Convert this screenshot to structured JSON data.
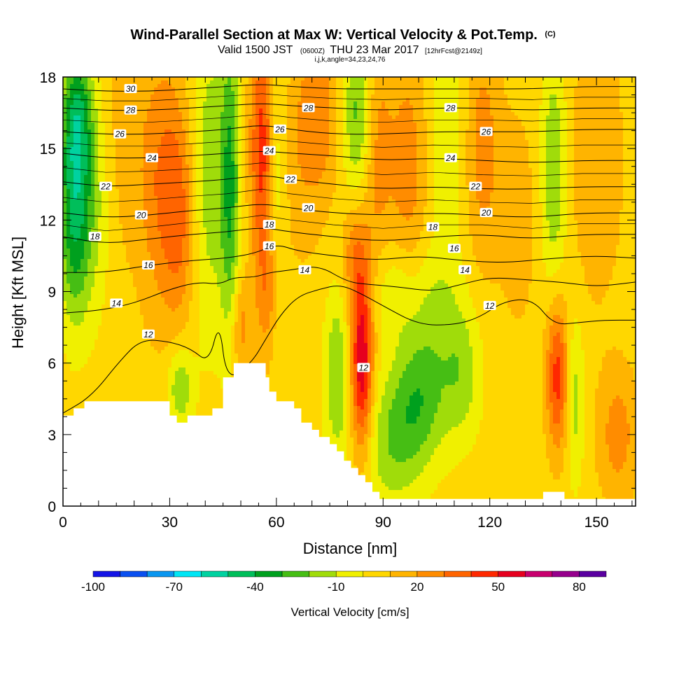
{
  "chart_data": {
    "type": "heatmap",
    "title": "Wind-Parallel Section at Max W: Vertical Velocity & Pot.Temp.",
    "title_mark": "(C)",
    "subtitle_valid": "Valid 1500 JST",
    "subtitle_utc": "(0600Z)",
    "subtitle_date": "THU 23 Mar 2017",
    "subtitle_fcst": "[12hrFcst@2149z]",
    "subtitle_index": "i,j,k,angle=34,23,24,76",
    "xlabel": "Distance [nm]",
    "ylabel": "Height [Kft MSL]",
    "xlim": [
      0,
      161
    ],
    "ylim": [
      0,
      18
    ],
    "x_ticks": [
      "0",
      "30",
      "60",
      "90",
      "120",
      "150"
    ],
    "y_ticks": [
      "0",
      "3",
      "6",
      "9",
      "12",
      "15",
      "18"
    ],
    "colorbar": {
      "title": "Vertical Velocity [cm/s]",
      "labels": [
        "-100",
        "-70",
        "-40",
        "-10",
        "20",
        "50",
        "80"
      ],
      "label_values": [
        -100,
        -70,
        -40,
        -10,
        20,
        50,
        80
      ],
      "min": -100,
      "max": 90,
      "step": 10,
      "colors": [
        "#1414e6",
        "#0a50f0",
        "#0a96f0",
        "#00e6f5",
        "#00d2a0",
        "#00be5a",
        "#00a01e",
        "#46be14",
        "#a0dc0a",
        "#f0f000",
        "#ffd700",
        "#ffb400",
        "#ff8c00",
        "#ff6400",
        "#ff2800",
        "#e6001e",
        "#c8006e",
        "#96008c",
        "#5a00a0"
      ]
    },
    "terrain_profile": {
      "x": [
        0,
        3,
        3,
        6,
        6,
        9,
        9,
        30,
        30,
        32,
        32,
        35,
        35,
        42,
        42,
        45,
        45,
        45,
        48,
        48,
        51,
        51,
        57,
        57,
        58,
        58,
        60,
        60,
        65,
        65,
        67,
        67,
        70,
        70,
        72,
        72,
        75,
        75,
        77,
        77,
        79,
        79,
        81,
        81,
        83,
        83,
        85,
        85,
        87,
        87,
        89,
        89,
        91,
        91,
        94,
        94,
        135,
        135,
        141,
        141,
        161
      ],
      "y": [
        3.8,
        3.8,
        4.1,
        4.1,
        4.4,
        4.4,
        4.4,
        4.4,
        3.8,
        3.8,
        3.5,
        3.5,
        3.8,
        3.8,
        4.1,
        4.1,
        4.1,
        5.4,
        5.4,
        6.0,
        6.0,
        6.0,
        6.0,
        5.4,
        5.4,
        4.8,
        4.8,
        4.4,
        4.4,
        4.1,
        4.1,
        3.5,
        3.5,
        3.2,
        3.2,
        2.9,
        2.9,
        2.6,
        2.6,
        2.3,
        2.3,
        1.9,
        1.9,
        1.6,
        1.6,
        1.3,
        1.3,
        1.0,
        1.0,
        0.6,
        0.6,
        0.3,
        0.3,
        0.3,
        0.3,
        0.3,
        0.3,
        0.6,
        0.6,
        0.3,
        0.3
      ]
    },
    "w_features": [
      {
        "x": 3,
        "y": 12.5,
        "sx": 3.0,
        "sy": 3.2,
        "w": -40
      },
      {
        "x": 4,
        "y": 16.5,
        "sx": 3.0,
        "sy": 2.0,
        "w": -30
      },
      {
        "x": 8,
        "y": 13.0,
        "sx": 4.0,
        "sy": 3.5,
        "w": -20
      },
      {
        "x": 16,
        "y": 15.5,
        "sx": 5.0,
        "sy": 4.0,
        "w": 10
      },
      {
        "x": 28,
        "y": 13.5,
        "sx": 4.5,
        "sy": 4.0,
        "w": 25
      },
      {
        "x": 33,
        "y": 5.0,
        "sx": 2.5,
        "sy": 1.2,
        "w": -25
      },
      {
        "x": 33,
        "y": 12.0,
        "sx": 3.0,
        "sy": 3.0,
        "w": 20
      },
      {
        "x": 41,
        "y": 14.0,
        "sx": 3.5,
        "sy": 5.0,
        "w": -20
      },
      {
        "x": 47,
        "y": 13.5,
        "sx": 2.0,
        "sy": 4.5,
        "w": -35
      },
      {
        "x": 50,
        "y": 7.5,
        "sx": 2.0,
        "sy": 1.5,
        "w": 20
      },
      {
        "x": 56,
        "y": 15.0,
        "sx": 2.5,
        "sy": 3.5,
        "w": 40
      },
      {
        "x": 58,
        "y": 8.5,
        "sx": 2.5,
        "sy": 2.0,
        "w": 25
      },
      {
        "x": 60,
        "y": 14.0,
        "sx": 2.0,
        "sy": 4.0,
        "w": -20
      },
      {
        "x": 60,
        "y": 7.5,
        "sx": 3.0,
        "sy": 1.5,
        "w": -10
      },
      {
        "x": 66,
        "y": 14.5,
        "sx": 5.0,
        "sy": 3.5,
        "w": 10
      },
      {
        "x": 72,
        "y": 16.5,
        "sx": 4.0,
        "sy": 2.5,
        "w": 20
      },
      {
        "x": 77,
        "y": 5.5,
        "sx": 2.5,
        "sy": 2.5,
        "w": -25
      },
      {
        "x": 84,
        "y": 6.0,
        "sx": 2.2,
        "sy": 2.7,
        "w": 55
      },
      {
        "x": 82,
        "y": 10.5,
        "sx": 2.5,
        "sy": 1.5,
        "w": 20
      },
      {
        "x": 83,
        "y": 16.5,
        "sx": 3.0,
        "sy": 2.5,
        "w": -30
      },
      {
        "x": 88,
        "y": 15.0,
        "sx": 3.0,
        "sy": 3.5,
        "w": 20
      },
      {
        "x": 93,
        "y": 9.0,
        "sx": 4.0,
        "sy": 1.5,
        "w": -15
      },
      {
        "x": 100,
        "y": 4.5,
        "sx": 5.5,
        "sy": 2.0,
        "w": -30
      },
      {
        "x": 92,
        "y": 2.5,
        "sx": 6.0,
        "sy": 2.0,
        "w": -20
      },
      {
        "x": 104,
        "y": 8.5,
        "sx": 6.0,
        "sy": 2.0,
        "w": -15
      },
      {
        "x": 112,
        "y": 5.5,
        "sx": 4.0,
        "sy": 2.0,
        "w": -20
      },
      {
        "x": 97,
        "y": 14.0,
        "sx": 4.0,
        "sy": 4.0,
        "w": 20
      },
      {
        "x": 108,
        "y": 15.5,
        "sx": 3.5,
        "sy": 3.0,
        "w": -15
      },
      {
        "x": 118,
        "y": 15.0,
        "sx": 3.5,
        "sy": 3.5,
        "w": 20
      },
      {
        "x": 128,
        "y": 12.0,
        "sx": 4.0,
        "sy": 3.5,
        "w": 10
      },
      {
        "x": 138,
        "y": 14.0,
        "sx": 2.5,
        "sy": 3.5,
        "w": -25
      },
      {
        "x": 139,
        "y": 5.5,
        "sx": 2.2,
        "sy": 2.2,
        "w": 40
      },
      {
        "x": 144,
        "y": 4.5,
        "sx": 1.8,
        "sy": 2.5,
        "w": -20
      },
      {
        "x": 150,
        "y": 14.5,
        "sx": 5.0,
        "sy": 4.0,
        "w": 15
      },
      {
        "x": 156,
        "y": 3.0,
        "sx": 4.0,
        "sy": 2.0,
        "w": 20
      }
    ],
    "theta_contours": [
      {
        "label": "12",
        "points": [
          [
            0,
            3.9
          ],
          [
            8,
            4.6
          ],
          [
            16,
            6.1
          ],
          [
            22,
            7.0
          ],
          [
            30,
            6.9
          ],
          [
            36,
            6.6
          ],
          [
            41,
            6.0
          ],
          [
            44,
            7.8
          ],
          [
            46,
            5.2
          ],
          [
            53,
            6.0
          ],
          [
            57,
            7.0
          ],
          [
            61,
            8.0
          ],
          [
            66,
            8.8
          ],
          [
            72,
            9.1
          ],
          [
            78,
            9.3
          ],
          [
            84,
            8.9
          ],
          [
            90,
            8.4
          ],
          [
            100,
            7.6
          ],
          [
            110,
            7.6
          ],
          [
            117,
            7.9
          ],
          [
            124,
            8.6
          ],
          [
            132,
            8.7
          ],
          [
            138,
            7.6
          ],
          [
            145,
            7.7
          ],
          [
            152,
            7.8
          ],
          [
            161,
            7.8
          ]
        ]
      },
      {
        "label": "14",
        "points": [
          [
            0,
            8.1
          ],
          [
            10,
            8.2
          ],
          [
            20,
            8.5
          ],
          [
            30,
            9.1
          ],
          [
            38,
            9.4
          ],
          [
            44,
            9.3
          ],
          [
            48,
            9.6
          ],
          [
            54,
            9.6
          ],
          [
            58,
            9.8
          ],
          [
            64,
            9.9
          ],
          [
            72,
            10.1
          ],
          [
            80,
            9.4
          ],
          [
            86,
            9.3
          ],
          [
            94,
            9.2
          ],
          [
            104,
            9.0
          ],
          [
            112,
            9.3
          ],
          [
            120,
            9.6
          ],
          [
            130,
            9.5
          ],
          [
            140,
            9.4
          ],
          [
            150,
            9.2
          ],
          [
            161,
            9.4
          ]
        ]
      },
      {
        "label": "16",
        "points": [
          [
            0,
            9.8
          ],
          [
            12,
            9.8
          ],
          [
            24,
            10.1
          ],
          [
            36,
            10.3
          ],
          [
            46,
            10.4
          ],
          [
            54,
            10.6
          ],
          [
            60,
            11.0
          ],
          [
            66,
            10.7
          ],
          [
            76,
            10.5
          ],
          [
            88,
            10.3
          ],
          [
            100,
            10.5
          ],
          [
            112,
            10.3
          ],
          [
            124,
            10.2
          ],
          [
            138,
            10.4
          ],
          [
            150,
            10.5
          ],
          [
            161,
            10.4
          ]
        ]
      },
      {
        "label": "18",
        "points": [
          [
            0,
            11.3
          ],
          [
            12,
            11.0
          ],
          [
            24,
            11.2
          ],
          [
            36,
            11.4
          ],
          [
            46,
            11.5
          ],
          [
            56,
            11.7
          ],
          [
            64,
            11.5
          ],
          [
            76,
            11.3
          ],
          [
            90,
            11.1
          ],
          [
            104,
            11.3
          ],
          [
            118,
            11.4
          ],
          [
            132,
            11.2
          ],
          [
            146,
            11.4
          ],
          [
            161,
            11.4
          ]
        ]
      },
      {
        "label": "20",
        "points": [
          [
            0,
            12.3
          ],
          [
            12,
            12.1
          ],
          [
            24,
            12.2
          ],
          [
            36,
            12.4
          ],
          [
            46,
            12.5
          ],
          [
            56,
            12.7
          ],
          [
            64,
            12.5
          ],
          [
            76,
            12.3
          ],
          [
            90,
            12.2
          ],
          [
            104,
            12.3
          ],
          [
            118,
            12.2
          ],
          [
            132,
            12.1
          ],
          [
            146,
            12.3
          ],
          [
            161,
            12.3
          ]
        ]
      },
      {
        "label": "22",
        "points": [
          [
            0,
            13.6
          ],
          [
            12,
            13.4
          ],
          [
            24,
            13.5
          ],
          [
            36,
            13.6
          ],
          [
            46,
            13.7
          ],
          [
            56,
            13.9
          ],
          [
            64,
            13.7
          ],
          [
            76,
            13.5
          ],
          [
            90,
            13.3
          ],
          [
            104,
            13.4
          ],
          [
            118,
            13.3
          ],
          [
            132,
            13.3
          ],
          [
            146,
            13.4
          ],
          [
            161,
            13.4
          ]
        ]
      },
      {
        "label": "24",
        "points": [
          [
            0,
            14.8
          ],
          [
            12,
            14.6
          ],
          [
            24,
            14.6
          ],
          [
            36,
            14.7
          ],
          [
            46,
            14.8
          ],
          [
            56,
            14.9
          ],
          [
            64,
            14.8
          ],
          [
            76,
            14.7
          ],
          [
            90,
            14.5
          ],
          [
            104,
            14.6
          ],
          [
            118,
            14.5
          ],
          [
            132,
            14.4
          ],
          [
            146,
            14.5
          ],
          [
            161,
            14.5
          ]
        ]
      },
      {
        "label": "26",
        "points": [
          [
            0,
            15.7
          ],
          [
            12,
            15.6
          ],
          [
            24,
            15.6
          ],
          [
            36,
            15.7
          ],
          [
            46,
            15.8
          ],
          [
            56,
            16.0
          ],
          [
            64,
            15.8
          ],
          [
            76,
            15.6
          ],
          [
            90,
            15.6
          ],
          [
            104,
            15.7
          ],
          [
            118,
            15.7
          ],
          [
            132,
            15.7
          ],
          [
            146,
            15.8
          ],
          [
            161,
            15.8
          ]
        ]
      },
      {
        "label": "28",
        "points": [
          [
            0,
            16.7
          ],
          [
            12,
            16.6
          ],
          [
            24,
            16.6
          ],
          [
            36,
            16.7
          ],
          [
            46,
            16.8
          ],
          [
            56,
            16.9
          ],
          [
            64,
            16.8
          ],
          [
            76,
            16.7
          ],
          [
            90,
            16.6
          ],
          [
            104,
            16.7
          ],
          [
            118,
            16.7
          ],
          [
            132,
            16.6
          ],
          [
            146,
            16.7
          ],
          [
            161,
            16.7
          ]
        ]
      },
      {
        "label": "30",
        "points": [
          [
            0,
            17.5
          ],
          [
            12,
            17.4
          ],
          [
            24,
            17.4
          ],
          [
            36,
            17.5
          ],
          [
            46,
            17.6
          ],
          [
            56,
            17.7
          ],
          [
            64,
            17.6
          ],
          [
            76,
            17.5
          ],
          [
            90,
            17.5
          ],
          [
            104,
            17.5
          ],
          [
            118,
            17.5
          ],
          [
            132,
            17.5
          ],
          [
            146,
            17.6
          ],
          [
            161,
            17.6
          ]
        ]
      }
    ],
    "contour_label_positions": [
      {
        "text": "30",
        "x": 19,
        "y": 17.5
      },
      {
        "text": "28",
        "x": 19,
        "y": 16.6
      },
      {
        "text": "26",
        "x": 16,
        "y": 15.6
      },
      {
        "text": "24",
        "x": 25,
        "y": 14.6
      },
      {
        "text": "22",
        "x": 12,
        "y": 13.4
      },
      {
        "text": "20",
        "x": 22,
        "y": 12.2
      },
      {
        "text": "18",
        "x": 9,
        "y": 11.3
      },
      {
        "text": "16",
        "x": 24,
        "y": 10.1
      },
      {
        "text": "14",
        "x": 15,
        "y": 8.5
      },
      {
        "text": "12",
        "x": 24,
        "y": 7.2
      },
      {
        "text": "28",
        "x": 69,
        "y": 16.7
      },
      {
        "text": "26",
        "x": 61,
        "y": 15.8
      },
      {
        "text": "24",
        "x": 58,
        "y": 14.9
      },
      {
        "text": "22",
        "x": 64,
        "y": 13.7
      },
      {
        "text": "20",
        "x": 69,
        "y": 12.5
      },
      {
        "text": "18",
        "x": 58,
        "y": 11.8
      },
      {
        "text": "16",
        "x": 58,
        "y": 10.9
      },
      {
        "text": "14",
        "x": 68,
        "y": 9.9
      },
      {
        "text": "12",
        "x": 84.5,
        "y": 5.8
      },
      {
        "text": "28",
        "x": 109,
        "y": 16.7
      },
      {
        "text": "26",
        "x": 119,
        "y": 15.7
      },
      {
        "text": "24",
        "x": 109,
        "y": 14.6
      },
      {
        "text": "22",
        "x": 116,
        "y": 13.4
      },
      {
        "text": "20",
        "x": 119,
        "y": 12.3
      },
      {
        "text": "18",
        "x": 104,
        "y": 11.7
      },
      {
        "text": "16",
        "x": 110,
        "y": 10.8
      },
      {
        "text": "14",
        "x": 113,
        "y": 9.9
      },
      {
        "text": "12",
        "x": 120,
        "y": 8.4
      }
    ]
  }
}
